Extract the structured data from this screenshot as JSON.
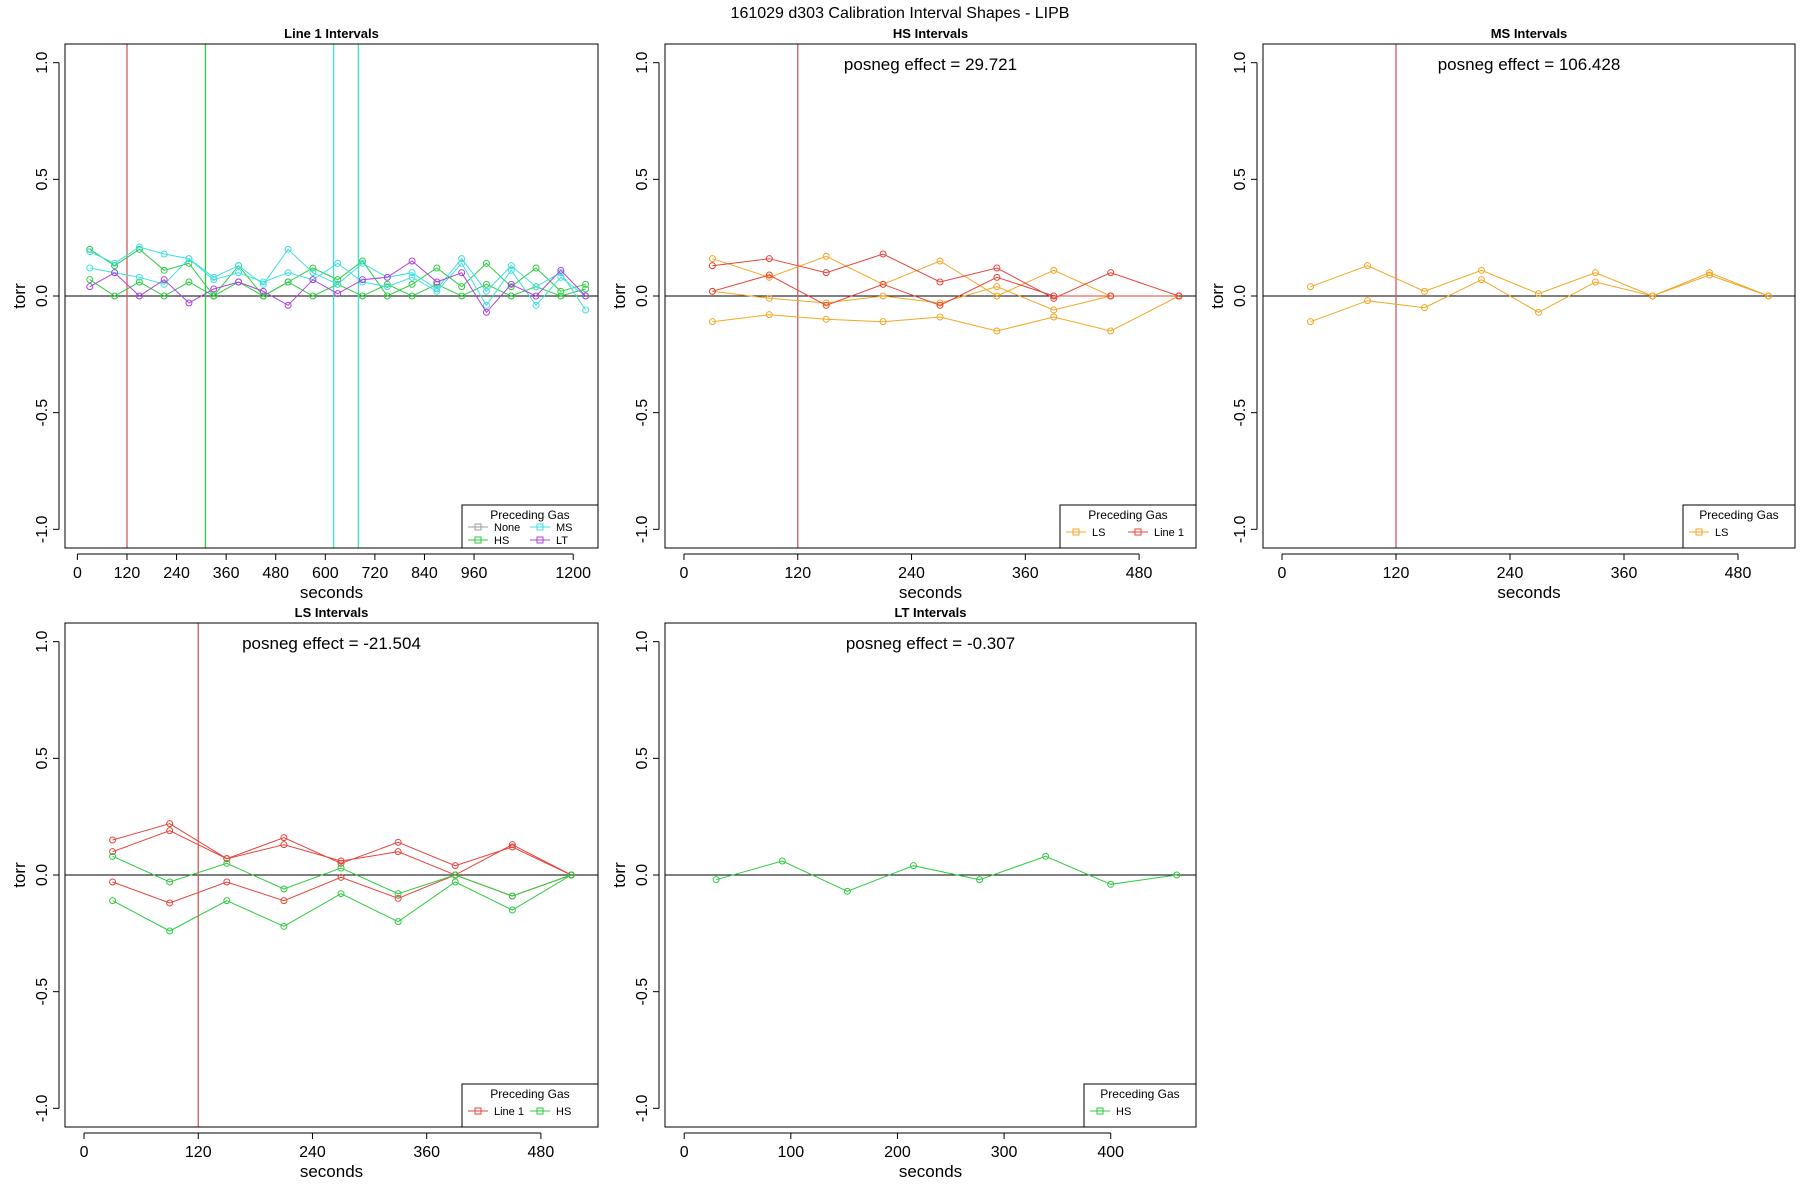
{
  "title": "161029   d303   Calibration Interval Shapes - LIPB",
  "chart_data": [
    {
      "type": "line",
      "title": "Line 1 Intervals",
      "xlabel": "seconds",
      "ylabel": "torr",
      "xlim": [
        -30,
        1260
      ],
      "ylim": [
        -1.08,
        1.08
      ],
      "xticks": [
        0,
        120,
        240,
        360,
        480,
        600,
        720,
        840,
        960,
        1200
      ],
      "yticks": [
        -1.0,
        -0.5,
        0.0,
        0.5,
        1.0
      ],
      "ytick_labels": [
        "-1.0",
        "-0.5",
        "0.0",
        "0.5",
        "1.0"
      ],
      "hline": 0,
      "vlines": [
        {
          "x": 120,
          "color": "#cd5c5c"
        },
        {
          "x": 310,
          "color": "#2ecc40"
        },
        {
          "x": 620,
          "color": "#40e0d0"
        },
        {
          "x": 680,
          "color": "#40e0d0"
        }
      ],
      "annotation": "",
      "legend": {
        "title": "Preceding Gas",
        "position": "bottom-right",
        "columns": 2,
        "entries": [
          {
            "label": "None",
            "color": "#9e9e9e"
          },
          {
            "label": "MS",
            "color": "#40e0e0"
          },
          {
            "label": "HS",
            "color": "#2ecc40"
          },
          {
            "label": "LT",
            "color": "#b040e0"
          }
        ]
      },
      "series": [
        {
          "color": "#2ecc40",
          "x": [
            30,
            90,
            150,
            210,
            270,
            330,
            390,
            450,
            510,
            570,
            630,
            690,
            750,
            810,
            870,
            930,
            990,
            1050,
            1110,
            1170,
            1230
          ],
          "y": [
            0.2,
            0.13,
            0.2,
            0.11,
            0.14,
            0.0,
            0.13,
            0.0,
            0.06,
            0.12,
            0.07,
            0.15,
            0.0,
            0.05,
            0.12,
            0.04,
            0.14,
            0.04,
            0.12,
            0.02,
            0.05
          ]
        },
        {
          "color": "#2ecc40",
          "x": [
            30,
            90,
            150,
            210,
            270,
            330,
            390,
            450,
            510,
            570,
            630,
            690,
            750,
            810,
            870,
            930,
            990,
            1050,
            1110,
            1170,
            1230
          ],
          "y": [
            0.07,
            0.0,
            0.06,
            0.0,
            0.06,
            0.0,
            0.06,
            0.0,
            0.06,
            0.0,
            0.05,
            0.0,
            0.05,
            0.0,
            0.05,
            0.0,
            0.05,
            0.0,
            0.04,
            0.0,
            0.03
          ]
        },
        {
          "color": "#40e0e0",
          "x": [
            30,
            90,
            150,
            210,
            270,
            330,
            390,
            450,
            510,
            570,
            630,
            690,
            750,
            810,
            870,
            930,
            990,
            1050,
            1110,
            1170,
            1230
          ],
          "y": [
            0.12,
            0.1,
            0.08,
            0.05,
            0.16,
            0.08,
            0.13,
            0.05,
            0.2,
            0.1,
            0.05,
            0.14,
            0.08,
            0.1,
            0.03,
            0.16,
            0.02,
            0.13,
            0.04,
            0.1,
            -0.06
          ]
        },
        {
          "color": "#40e0e0",
          "x": [
            30,
            90,
            150,
            210,
            270,
            330,
            390,
            450,
            510,
            570,
            630,
            690,
            750,
            810,
            870,
            930,
            990,
            1050,
            1110,
            1170,
            1230
          ],
          "y": [
            0.19,
            0.14,
            0.21,
            0.18,
            0.16,
            0.07,
            0.1,
            0.06,
            0.1,
            0.07,
            0.14,
            0.06,
            0.04,
            0.08,
            0.02,
            0.14,
            -0.04,
            0.11,
            -0.04,
            0.08,
            0.0
          ]
        },
        {
          "color": "#b040e0",
          "x": [
            30,
            90,
            150,
            210,
            270,
            330,
            390,
            450,
            510,
            570,
            630,
            690,
            750,
            810,
            870,
            930,
            990,
            1050,
            1110,
            1170,
            1230
          ],
          "y": [
            0.04,
            0.1,
            0.0,
            0.07,
            -0.03,
            0.03,
            0.06,
            0.02,
            -0.04,
            0.07,
            0.01,
            0.07,
            0.08,
            0.15,
            0.06,
            0.1,
            -0.07,
            0.05,
            0.0,
            0.11,
            0.0
          ]
        }
      ]
    },
    {
      "type": "line",
      "title": "HS Intervals",
      "xlabel": "seconds",
      "ylabel": "torr",
      "xlim": [
        -20,
        540
      ],
      "ylim": [
        -1.08,
        1.08
      ],
      "xticks": [
        0,
        120,
        240,
        360,
        480
      ],
      "yticks": [
        -1.0,
        -0.5,
        0.0,
        0.5,
        1.0
      ],
      "ytick_labels": [
        "-1.0",
        "-0.5",
        "0.0",
        "0.5",
        "1.0"
      ],
      "hline": 0,
      "vlines": [
        {
          "x": 120,
          "color": "#cd5c5c"
        }
      ],
      "annotation": "posneg effect = 29.721",
      "legend": {
        "title": "Preceding Gas",
        "position": "bottom-right",
        "columns": 2,
        "entries": [
          {
            "label": "LS",
            "color": "#f5a623"
          },
          {
            "label": "Line 1",
            "color": "#e8433b"
          }
        ]
      },
      "series": [
        {
          "color": "#f5a623",
          "x": [
            30,
            90,
            150,
            210,
            270,
            330,
            390,
            450,
            522
          ],
          "y": [
            0.16,
            0.08,
            0.17,
            0.05,
            0.15,
            0.0,
            0.11,
            0.0,
            0.0
          ]
        },
        {
          "color": "#f5a623",
          "x": [
            30,
            90,
            150,
            210,
            270,
            330,
            390,
            450,
            522
          ],
          "y": [
            0.02,
            -0.01,
            -0.03,
            0.0,
            -0.03,
            0.04,
            -0.06,
            0.0,
            0.0
          ]
        },
        {
          "color": "#f5a623",
          "x": [
            30,
            90,
            150,
            210,
            270,
            330,
            390,
            450,
            522
          ],
          "y": [
            -0.11,
            -0.08,
            -0.1,
            -0.11,
            -0.09,
            -0.15,
            -0.09,
            -0.15,
            0.0
          ]
        },
        {
          "color": "#e8433b",
          "x": [
            30,
            90,
            150,
            210,
            270,
            330,
            390,
            450,
            522
          ],
          "y": [
            0.13,
            0.16,
            0.1,
            0.18,
            0.06,
            0.12,
            -0.01,
            0.1,
            0.0
          ]
        },
        {
          "color": "#e8433b",
          "x": [
            30,
            90,
            150,
            210,
            270,
            330,
            390,
            450,
            522
          ],
          "y": [
            0.02,
            0.09,
            -0.04,
            0.05,
            -0.04,
            0.08,
            0.0,
            0.0,
            0.0
          ]
        }
      ]
    },
    {
      "type": "line",
      "title": "MS Intervals",
      "xlabel": "seconds",
      "ylabel": "torr",
      "xlim": [
        -20,
        540
      ],
      "ylim": [
        -1.08,
        1.08
      ],
      "xticks": [
        0,
        120,
        240,
        360,
        480
      ],
      "yticks": [
        -1.0,
        -0.5,
        0.0,
        0.5,
        1.0
      ],
      "ytick_labels": [
        "-1.0",
        "-0.5",
        "0.0",
        "0.5",
        "1.0"
      ],
      "hline": 0,
      "vlines": [
        {
          "x": 120,
          "color": "#cd5c5c"
        }
      ],
      "annotation": "posneg effect = 106.428",
      "legend": {
        "title": "Preceding Gas",
        "position": "bottom-right",
        "columns": 1,
        "entries": [
          {
            "label": "LS",
            "color": "#f5a623"
          }
        ]
      },
      "series": [
        {
          "color": "#f5a623",
          "x": [
            30,
            90,
            150,
            210,
            270,
            330,
            390,
            450,
            512
          ],
          "y": [
            0.04,
            0.13,
            0.02,
            0.11,
            0.01,
            0.1,
            0.0,
            0.1,
            0.0
          ]
        },
        {
          "color": "#f5a623",
          "x": [
            30,
            90,
            150,
            210,
            270,
            330,
            390,
            450,
            512
          ],
          "y": [
            -0.11,
            -0.02,
            -0.05,
            0.07,
            -0.07,
            0.06,
            0.0,
            0.09,
            0.0
          ]
        }
      ]
    },
    {
      "type": "line",
      "title": "LS Intervals",
      "xlabel": "seconds",
      "ylabel": "torr",
      "xlim": [
        -20,
        540
      ],
      "ylim": [
        -1.08,
        1.08
      ],
      "xticks": [
        0,
        120,
        240,
        360,
        480
      ],
      "yticks": [
        -1.0,
        -0.5,
        0.0,
        0.5,
        1.0
      ],
      "ytick_labels": [
        "-1.0",
        "-0.5",
        "0.0",
        "0.5",
        "1.0"
      ],
      "hline": 0,
      "vlines": [
        {
          "x": 120,
          "color": "#cd5c5c"
        }
      ],
      "annotation": "posneg effect = -21.504",
      "legend": {
        "title": "Preceding Gas",
        "position": "bottom-right",
        "columns": 2,
        "entries": [
          {
            "label": "Line 1",
            "color": "#e8433b"
          },
          {
            "label": "HS",
            "color": "#2ecc40"
          }
        ]
      },
      "series": [
        {
          "color": "#e8433b",
          "x": [
            30,
            90,
            150,
            210,
            270,
            330,
            390,
            450,
            512
          ],
          "y": [
            0.15,
            0.22,
            0.07,
            0.16,
            0.05,
            0.14,
            0.04,
            0.12,
            0.0
          ]
        },
        {
          "color": "#e8433b",
          "x": [
            30,
            90,
            150,
            210,
            270,
            330,
            390,
            450,
            512
          ],
          "y": [
            0.1,
            0.19,
            0.07,
            0.13,
            0.06,
            0.1,
            0.0,
            0.13,
            0.0
          ]
        },
        {
          "color": "#e8433b",
          "x": [
            30,
            90,
            150,
            210,
            270,
            330,
            390,
            450,
            512
          ],
          "y": [
            -0.03,
            -0.12,
            -0.03,
            -0.11,
            -0.01,
            -0.1,
            0.0,
            -0.09,
            0.0
          ]
        },
        {
          "color": "#2ecc40",
          "x": [
            30,
            90,
            150,
            210,
            270,
            330,
            390,
            450,
            512
          ],
          "y": [
            0.08,
            -0.03,
            0.05,
            -0.06,
            0.03,
            -0.08,
            0.0,
            -0.09,
            0.0
          ]
        },
        {
          "color": "#2ecc40",
          "x": [
            30,
            90,
            150,
            210,
            270,
            330,
            390,
            450,
            512
          ],
          "y": [
            -0.11,
            -0.24,
            -0.11,
            -0.22,
            -0.08,
            -0.2,
            -0.03,
            -0.15,
            0.0
          ]
        }
      ]
    },
    {
      "type": "line",
      "title": "LT Intervals",
      "xlabel": "seconds",
      "ylabel": "torr",
      "xlim": [
        -18,
        480
      ],
      "ylim": [
        -1.08,
        1.08
      ],
      "xticks": [
        0,
        100,
        200,
        300,
        400
      ],
      "yticks": [
        -1.0,
        -0.5,
        0.0,
        0.5,
        1.0
      ],
      "ytick_labels": [
        "-1.0",
        "-0.5",
        "0.0",
        "0.5",
        "1.0"
      ],
      "hline": 0,
      "vlines": [],
      "annotation": "posneg effect = -0.307",
      "legend": {
        "title": "Preceding Gas",
        "position": "bottom-right",
        "columns": 1,
        "entries": [
          {
            "label": "HS",
            "color": "#2ecc40"
          }
        ]
      },
      "series": [
        {
          "color": "#2ecc40",
          "x": [
            30,
            92,
            153,
            215,
            277,
            339,
            400,
            462
          ],
          "y": [
            -0.02,
            0.06,
            -0.07,
            0.04,
            -0.02,
            0.08,
            -0.04,
            0.0
          ]
        }
      ]
    }
  ]
}
